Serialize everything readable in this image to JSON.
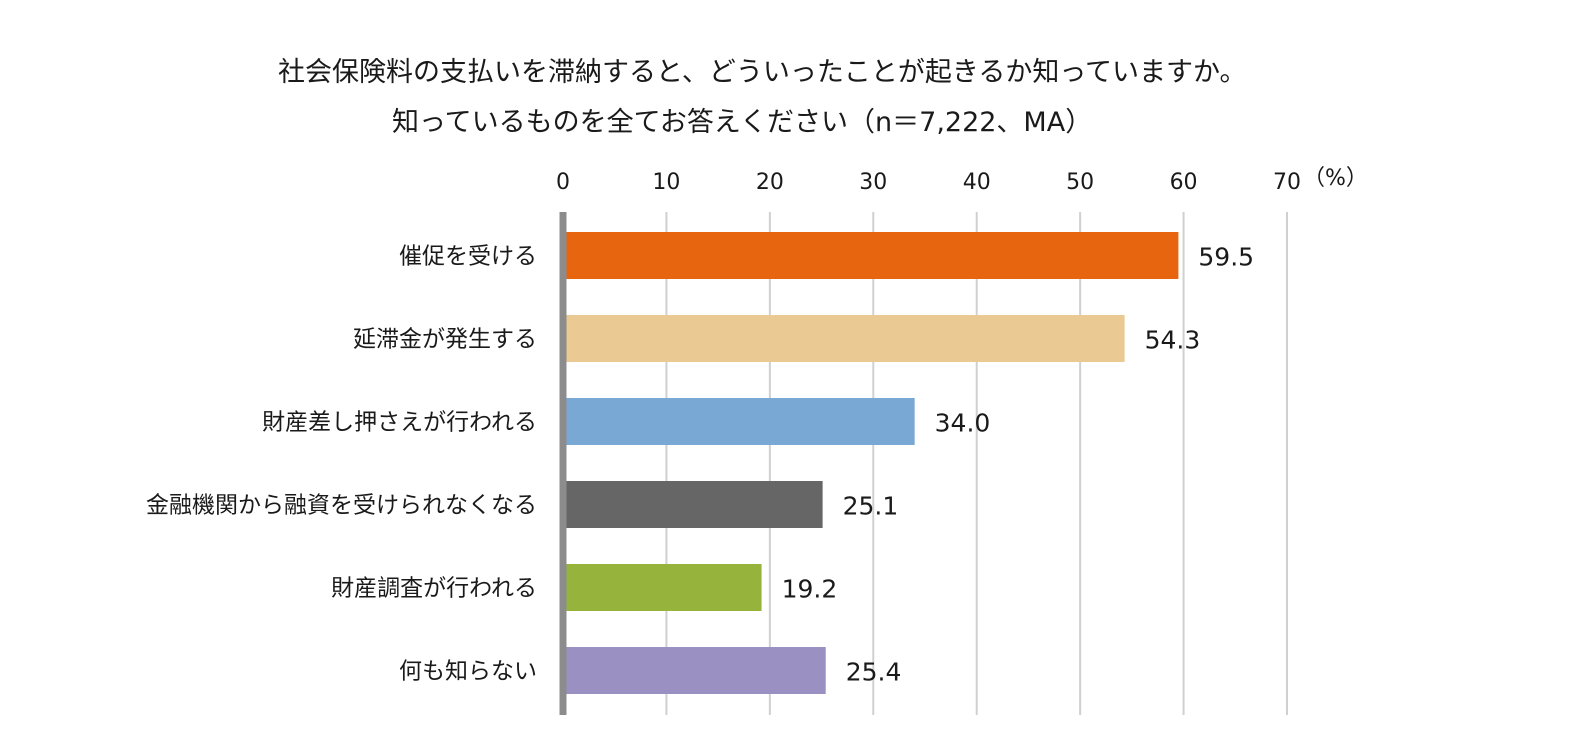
{
  "chart_data": {
    "type": "bar",
    "orientation": "horizontal",
    "title": "社会保険料の支払いを滞納すると、どういったことが起きるか知っていますか。",
    "subtitle": "知っているものを全てお答えください（n＝7,222、MA）",
    "unit": "（%）",
    "xlim": [
      0,
      70
    ],
    "ticks": [
      0,
      10,
      20,
      30,
      40,
      50,
      60,
      70
    ],
    "grid": true,
    "categories": [
      "催促を受ける",
      "延滞金が発生する",
      "財産差し押さえが行われる",
      "金融機関から融資を受けられなくなる",
      "財産調査が行われる",
      "何も知らない"
    ],
    "values": [
      59.5,
      54.3,
      34.0,
      25.1,
      19.2,
      25.4
    ],
    "value_labels": [
      "59.5",
      "54.3",
      "34.0",
      "25.1",
      "19.2",
      "25.4"
    ],
    "colors": [
      "#E8650F",
      "#EAC992",
      "#7AA8D5",
      "#666666",
      "#96B43C",
      "#9A90C2"
    ]
  }
}
